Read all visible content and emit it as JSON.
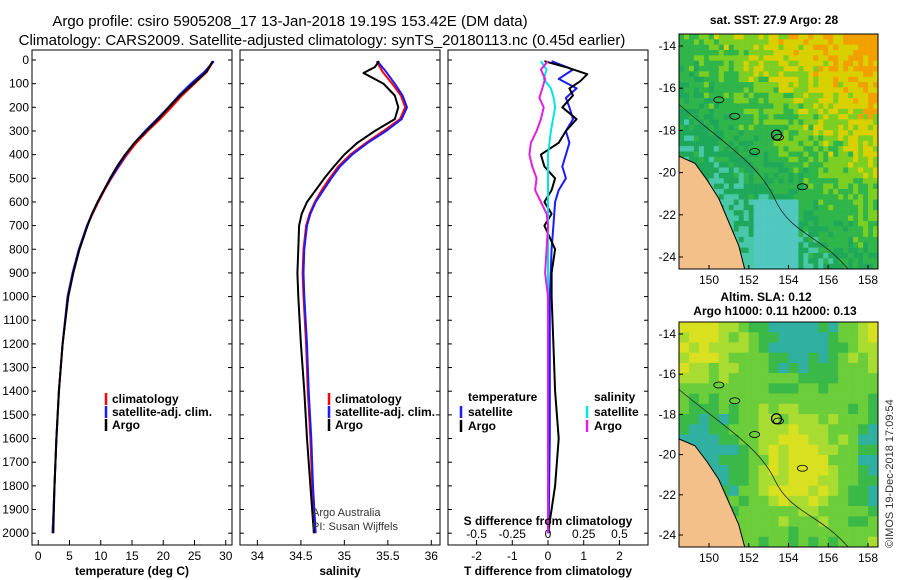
{
  "title": {
    "line1": "Argo profile: csiro 5905208_17 13-Jan-2018 19.19S 153.42E (DM data)",
    "line2": "Climatology: CARS2009. Satellite-adjusted climatology: synTS_20180113.nc (0.45d earlier)"
  },
  "colors": {
    "climatology": "#ff0000",
    "satellite": "#1a1aff",
    "argo": "#000000",
    "sal_satellite": "#00e5e5",
    "sal_argo": "#e020e0",
    "land": "#f4c08a"
  },
  "depth_axis": {
    "min": 0,
    "max": 2050,
    "ticks": [
      "0",
      "100",
      "200",
      "300",
      "400",
      "500",
      "600",
      "700",
      "800",
      "900",
      "1000",
      "1100",
      "1200",
      "1300",
      "1400",
      "1500",
      "1600",
      "1700",
      "1800",
      "1900",
      "2000"
    ]
  },
  "chart_data": [
    {
      "type": "line",
      "panel": "temperature",
      "xlabel": "temperature (deg C)",
      "xlim": [
        -1,
        31
      ],
      "xticks": [
        "0",
        "5",
        "10",
        "15",
        "20",
        "25",
        "30"
      ],
      "ylabel": "depth",
      "ylim": [
        2050,
        0
      ],
      "legend": [
        "climatology",
        "satellite-adj. clim.",
        "Argo"
      ],
      "series": [
        {
          "name": "climatology",
          "depth": [
            5,
            50,
            100,
            150,
            200,
            250,
            300,
            350,
            400,
            450,
            500,
            550,
            600,
            650,
            700,
            800,
            900,
            1000,
            1200,
            1400,
            1600,
            1800,
            2000
          ],
          "values": [
            28.0,
            27.0,
            25.0,
            23.0,
            21.3,
            19.5,
            17.5,
            15.7,
            14.2,
            12.9,
            11.7,
            10.6,
            9.6,
            8.7,
            7.8,
            6.5,
            5.5,
            4.7,
            3.9,
            3.3,
            2.9,
            2.6,
            2.3
          ]
        },
        {
          "name": "satellite-adj. clim.",
          "depth": [
            5,
            50,
            100,
            150,
            200,
            250,
            300,
            350,
            400,
            450,
            500,
            550,
            600,
            650,
            700,
            800,
            900,
            1000,
            1200,
            1400,
            1600,
            1800,
            2000
          ],
          "values": [
            28.1,
            26.6,
            24.4,
            22.5,
            20.8,
            19.0,
            17.1,
            15.4,
            14.0,
            12.8,
            11.6,
            10.5,
            9.5,
            8.6,
            7.8,
            6.5,
            5.5,
            4.7,
            3.9,
            3.3,
            2.9,
            2.6,
            2.3
          ]
        },
        {
          "name": "Argo",
          "depth": [
            5,
            50,
            100,
            150,
            200,
            250,
            300,
            350,
            400,
            450,
            500,
            550,
            600,
            650,
            700,
            800,
            900,
            1000,
            1200,
            1400,
            1600,
            1800,
            2000
          ],
          "values": [
            27.9,
            26.9,
            24.8,
            22.7,
            20.9,
            19.2,
            17.3,
            15.4,
            13.9,
            12.6,
            11.5,
            10.5,
            9.5,
            8.6,
            7.9,
            6.6,
            5.6,
            4.8,
            3.9,
            3.3,
            2.9,
            2.6,
            2.4
          ]
        }
      ]
    },
    {
      "type": "line",
      "panel": "salinity",
      "xlabel": "salinity",
      "xlim": [
        33.8,
        36.1
      ],
      "xticks": [
        "34",
        "34.5",
        "35",
        "35.5",
        "36"
      ],
      "ylim": [
        2050,
        0
      ],
      "legend": [
        "climatology",
        "satellite-adj. clim.",
        "Argo"
      ],
      "annotation": [
        "Argo Australia",
        "PI: Susan Wijffels"
      ],
      "series": [
        {
          "name": "climatology",
          "depth": [
            5,
            50,
            100,
            150,
            200,
            250,
            300,
            350,
            400,
            450,
            500,
            550,
            600,
            650,
            700,
            800,
            900,
            1000,
            1200,
            1400,
            1600,
            1800,
            2000
          ],
          "values": [
            35.37,
            35.44,
            35.55,
            35.65,
            35.7,
            35.64,
            35.45,
            35.25,
            35.07,
            34.93,
            34.83,
            34.74,
            34.66,
            34.6,
            34.56,
            34.53,
            34.52,
            34.53,
            34.56,
            34.58,
            34.61,
            34.63,
            34.66
          ]
        },
        {
          "name": "satellite-adj. clim.",
          "depth": [
            5,
            50,
            100,
            150,
            200,
            250,
            300,
            350,
            400,
            450,
            500,
            550,
            600,
            650,
            700,
            800,
            900,
            1000,
            1200,
            1400,
            1600,
            1800,
            2000
          ],
          "values": [
            35.38,
            35.48,
            35.58,
            35.67,
            35.72,
            35.66,
            35.48,
            35.27,
            35.09,
            34.95,
            34.85,
            34.76,
            34.67,
            34.61,
            34.57,
            34.54,
            34.53,
            34.54,
            34.57,
            34.59,
            34.62,
            34.64,
            34.67
          ]
        },
        {
          "name": "Argo",
          "depth": [
            5,
            30,
            55,
            100,
            150,
            200,
            250,
            300,
            350,
            400,
            450,
            500,
            550,
            600,
            650,
            700,
            800,
            900,
            1000,
            1200,
            1400,
            1600,
            1800,
            2000
          ],
          "values": [
            35.4,
            35.35,
            35.22,
            35.45,
            35.58,
            35.62,
            35.58,
            35.35,
            35.15,
            35.0,
            34.88,
            34.77,
            34.67,
            34.57,
            34.51,
            34.48,
            34.47,
            34.46,
            34.47,
            34.5,
            34.54,
            34.57,
            34.61,
            34.65
          ]
        }
      ]
    },
    {
      "type": "line",
      "panel": "difference",
      "xlabel": "T difference from climatology",
      "xlim": [
        -2.8,
        2.8
      ],
      "xticks": [
        "-2",
        "-1",
        "0",
        "1",
        "2"
      ],
      "secondary_xlabel": "S difference from climatology",
      "secondary_xticks": [
        "-0.5",
        "-0.25",
        "0",
        "0.25",
        "0.5"
      ],
      "ylim": [
        2050,
        0
      ],
      "legend_left": {
        "heading": "temperature",
        "items": [
          "satellite",
          "Argo"
        ]
      },
      "legend_right": {
        "heading": "salinity",
        "items": [
          "satellite",
          "Argo"
        ]
      },
      "series": [
        {
          "name": "temperature satellite",
          "depth": [
            5,
            40,
            80,
            120,
            160,
            200,
            250,
            300,
            350,
            400,
            450,
            500,
            550,
            600,
            700,
            800,
            1000,
            1200,
            1400,
            1600,
            1800,
            2000
          ],
          "values": [
            0.1,
            0.7,
            0.3,
            0.8,
            0.5,
            0.6,
            0.7,
            0.5,
            0.6,
            0.5,
            0.4,
            0.5,
            0.3,
            0.2,
            0.15,
            0.1,
            0.05,
            0.05,
            0.05,
            0.05,
            0.03,
            0.02
          ]
        },
        {
          "name": "temperature Argo",
          "depth": [
            5,
            30,
            60,
            90,
            120,
            150,
            200,
            250,
            300,
            350,
            400,
            450,
            500,
            550,
            600,
            650,
            700,
            800,
            900,
            1000,
            1200,
            1400,
            1600,
            1800,
            2000
          ],
          "values": [
            -0.1,
            0.5,
            1.1,
            0.9,
            0.6,
            0.7,
            0.4,
            0.8,
            0.5,
            0.3,
            -0.2,
            -0.1,
            0.2,
            0.1,
            -0.1,
            0.1,
            -0.1,
            0.2,
            0.1,
            0.1,
            0.15,
            0.2,
            0.3,
            0.2,
            0.0
          ]
        },
        {
          "name": "salinity satellite",
          "depth": [
            5,
            40,
            80,
            120,
            160,
            200,
            300,
            400,
            500,
            600,
            700,
            800,
            1000,
            1200,
            1400,
            1600,
            1800,
            2000
          ],
          "values": [
            -0.05,
            -0.01,
            -0.03,
            0.02,
            0.04,
            0.05,
            0.02,
            0.0,
            0.0,
            0.0,
            0.0,
            0.0,
            0.0,
            0.0,
            0.0,
            0.0,
            0.0,
            0.0
          ]
        },
        {
          "name": "salinity Argo",
          "depth": [
            5,
            40,
            80,
            120,
            160,
            200,
            250,
            300,
            350,
            400,
            450,
            500,
            550,
            600,
            650,
            700,
            800,
            900,
            1000,
            1200,
            1400,
            1600,
            1800,
            2000
          ],
          "values": [
            0.0,
            -0.05,
            -0.02,
            -0.04,
            -0.06,
            -0.03,
            -0.05,
            -0.08,
            -0.12,
            -0.13,
            -0.11,
            -0.08,
            -0.09,
            -0.05,
            -0.01,
            0.0,
            -0.01,
            -0.02,
            0.0,
            0.0,
            0.0,
            0.0,
            0.0,
            0.0
          ]
        }
      ]
    }
  ],
  "maps": {
    "sst": {
      "title": "sat. SST: 27.9 Argo: 28",
      "lat_ticks": [
        "-14",
        "-16",
        "-18",
        "-20",
        "-22",
        "-24"
      ],
      "lon_ticks": [
        "150",
        "152",
        "154",
        "156",
        "158"
      ]
    },
    "sla": {
      "title_line1": "Altim. SLA: 0.12",
      "title_line2": "Argo h1000: 0.11 h2000: 0.13",
      "lat_ticks": [
        "-14",
        "-16",
        "-18",
        "-20",
        "-22",
        "-24"
      ],
      "lon_ticks": [
        "150",
        "152",
        "154",
        "156",
        "158"
      ]
    }
  },
  "credit": "©IMOS 19-Dec-2018 17:09:54"
}
